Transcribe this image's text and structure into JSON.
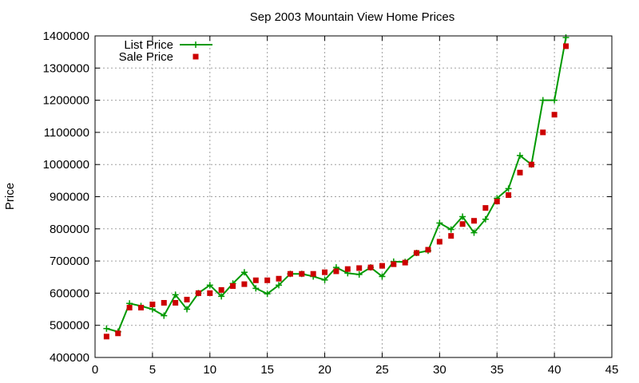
{
  "chart_data": {
    "type": "line",
    "title": "Sep 2003 Mountain View Home Prices",
    "xlabel": "",
    "ylabel": "Price",
    "xlim": [
      0,
      45
    ],
    "ylim": [
      400000,
      1400000
    ],
    "x_ticks": [
      0,
      5,
      10,
      15,
      20,
      25,
      30,
      35,
      40,
      45
    ],
    "y_ticks": [
      400000,
      500000,
      600000,
      700000,
      800000,
      900000,
      1000000,
      1100000,
      1200000,
      1300000,
      1400000
    ],
    "grid": true,
    "legend_position": "top-left",
    "x": [
      1,
      2,
      3,
      4,
      5,
      6,
      7,
      8,
      9,
      10,
      11,
      12,
      13,
      14,
      15,
      16,
      17,
      18,
      19,
      20,
      21,
      22,
      23,
      24,
      25,
      26,
      27,
      28,
      29,
      30,
      31,
      32,
      33,
      34,
      35,
      36,
      37,
      38,
      39,
      40,
      41
    ],
    "series": [
      {
        "name": "List Price",
        "style": "line-plus",
        "color": "#009900",
        "values": [
          490000,
          480000,
          568000,
          560000,
          550000,
          530000,
          595000,
          550000,
          600000,
          625000,
          590000,
          630000,
          665000,
          615000,
          598000,
          625000,
          660000,
          660000,
          652000,
          641000,
          680000,
          662000,
          658000,
          680000,
          652000,
          698000,
          697000,
          725000,
          732000,
          818000,
          798000,
          838000,
          788000,
          830000,
          895000,
          925000,
          1028000,
          1000000,
          1200000,
          1200000,
          1395000
        ]
      },
      {
        "name": "Sale Price",
        "style": "square",
        "color": "#cc0000",
        "values": [
          465000,
          475000,
          555000,
          555000,
          565000,
          570000,
          570000,
          580000,
          600000,
          600000,
          610000,
          622000,
          628000,
          640000,
          640000,
          645000,
          660000,
          660000,
          660000,
          665000,
          668000,
          675000,
          678000,
          680000,
          685000,
          690000,
          695000,
          725000,
          735000,
          760000,
          778000,
          815000,
          825000,
          865000,
          885000,
          905000,
          975000,
          1000000,
          1100000,
          1155000,
          1368000
        ]
      }
    ]
  }
}
